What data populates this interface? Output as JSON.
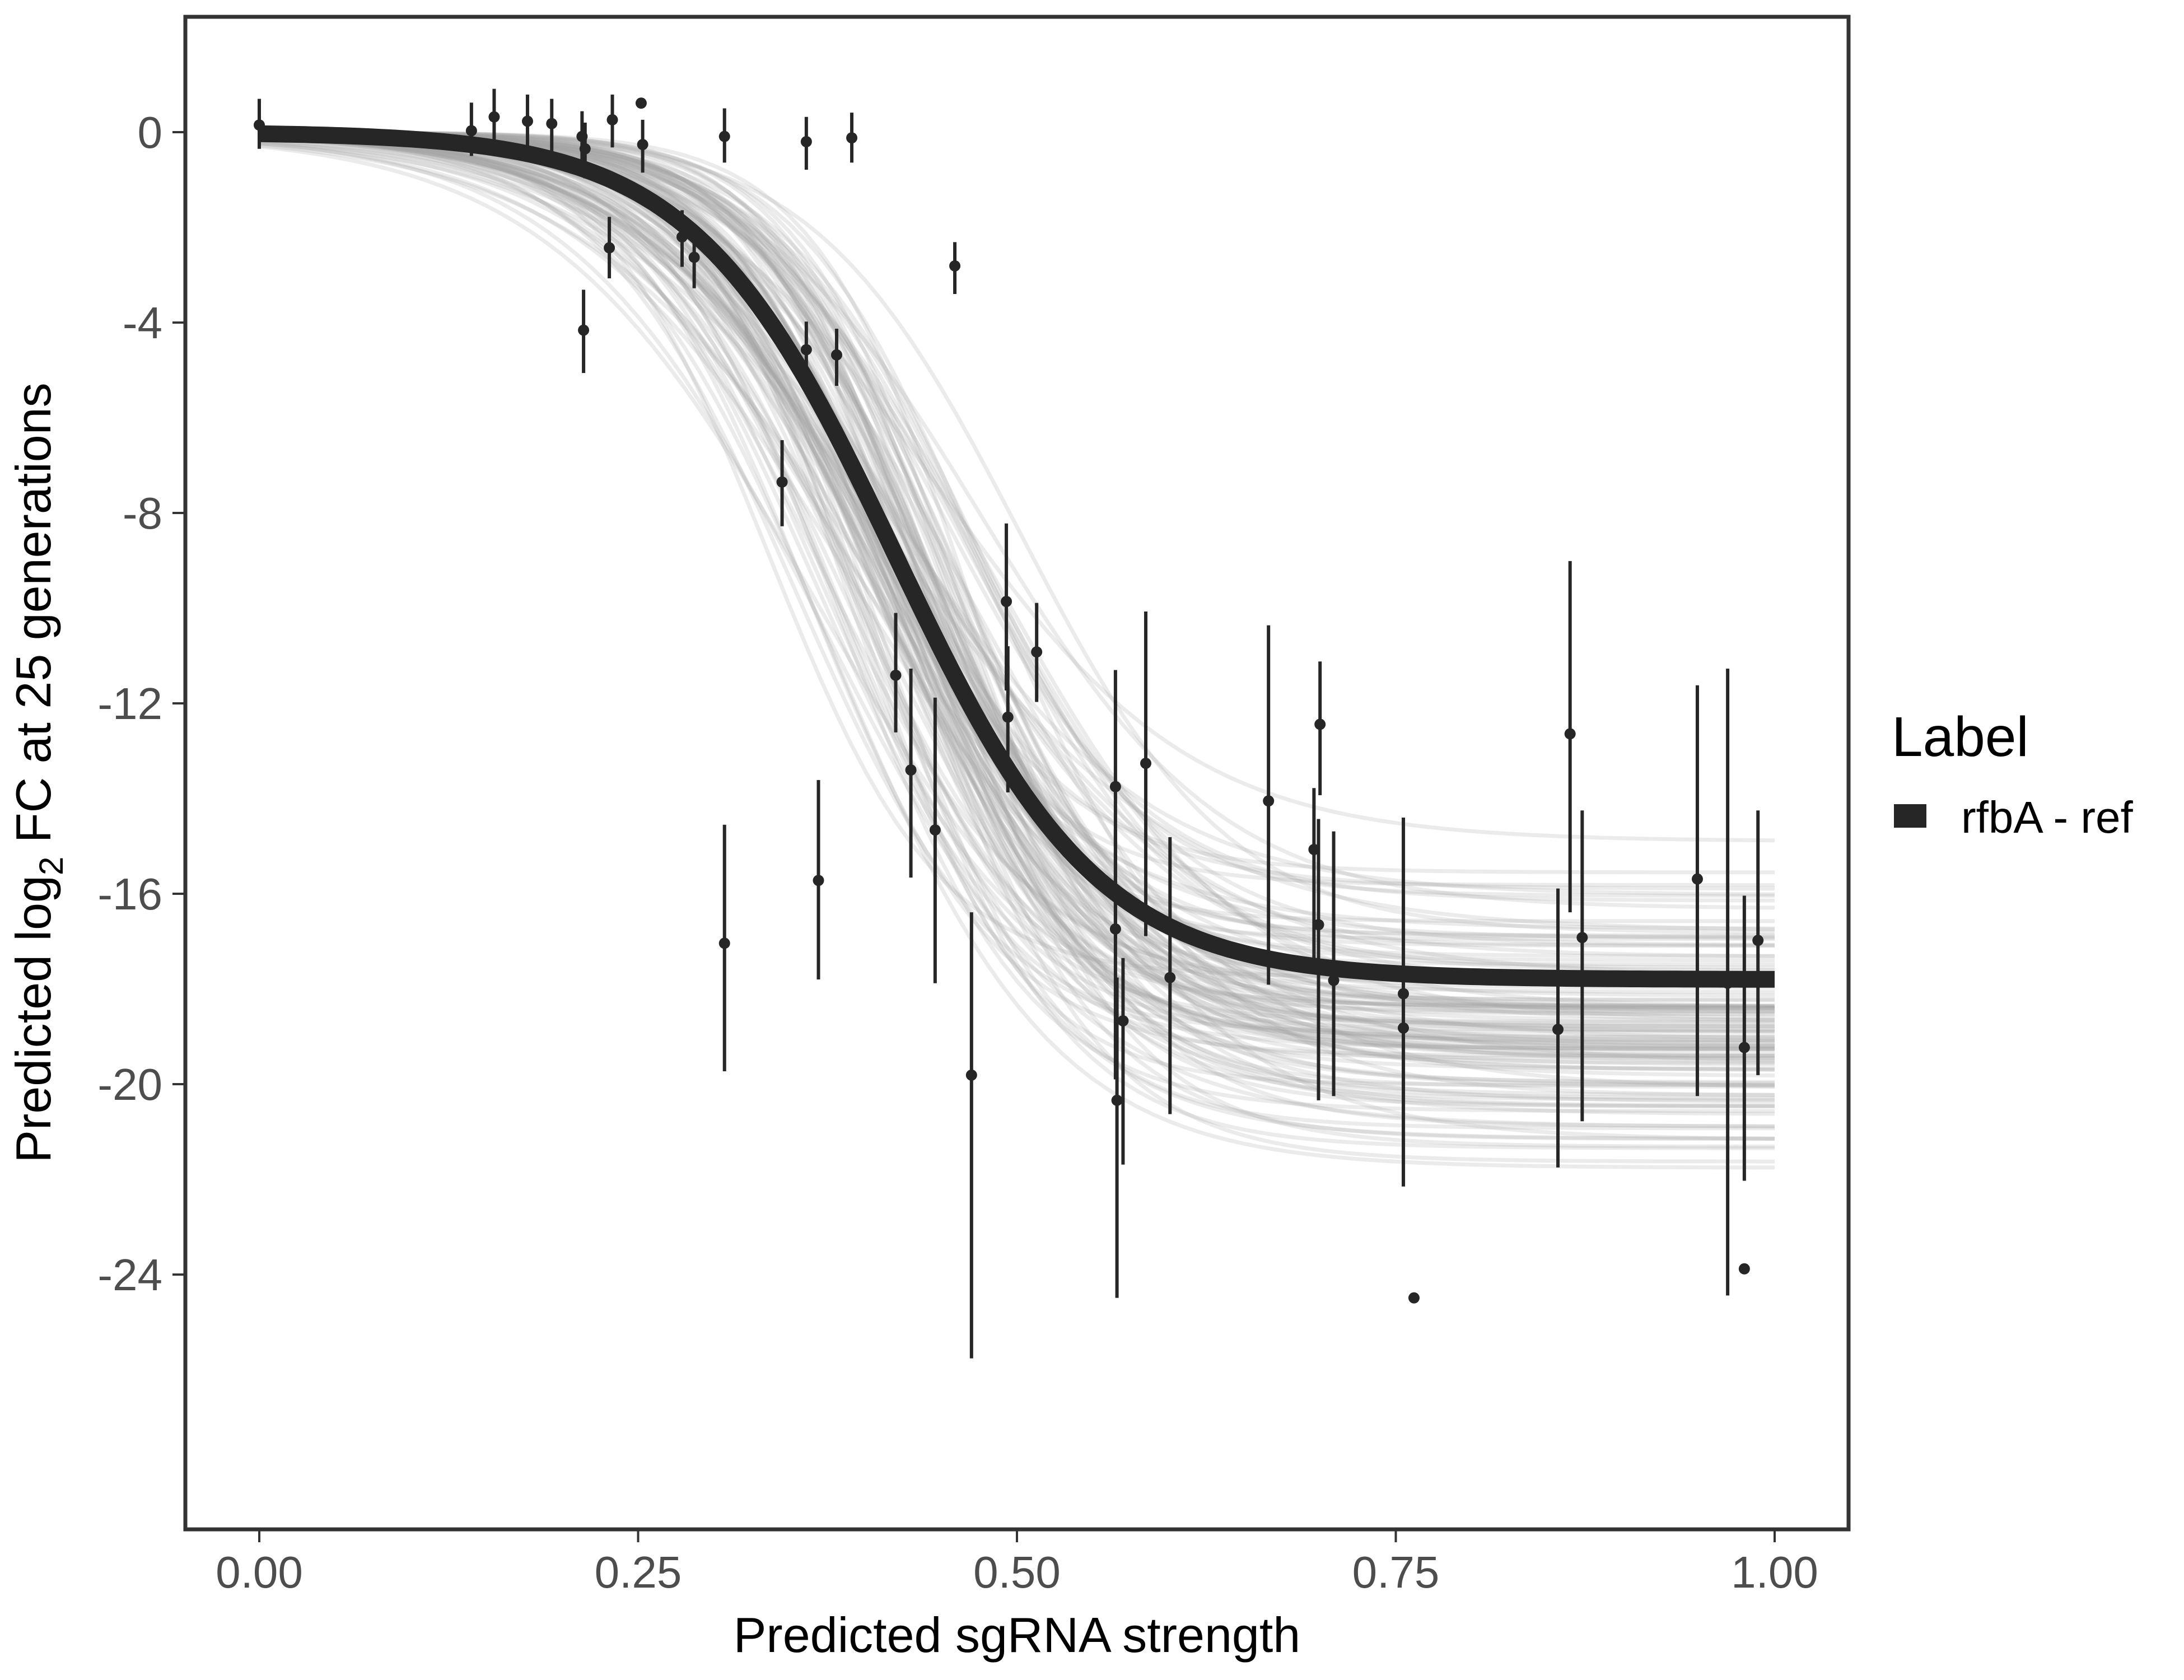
{
  "chart_data": {
    "type": "scatter",
    "title": "",
    "xlabel": "Predicted sgRNA strength",
    "ylabel_parts": [
      "Predicted  log",
      "2",
      " FC at 25 generations"
    ],
    "xlim": [
      -0.05,
      1.05
    ],
    "ylim": [
      -29.5,
      2.4
    ],
    "x_ticks": [
      0,
      0.25,
      0.5,
      0.75,
      1.0
    ],
    "x_tick_labels": [
      "0.00",
      "0.25",
      "0.50",
      "0.75",
      "1.00"
    ],
    "y_ticks": [
      0,
      -4,
      -8,
      -12,
      -16,
      -20,
      -24
    ],
    "y_tick_labels": [
      "0",
      "-4",
      "-8",
      "-12",
      "-16",
      "-20",
      "-24"
    ],
    "grid": false,
    "legend": {
      "title": "Label",
      "placement": "right",
      "entries": [
        {
          "label": "rfbA - ref",
          "color": "#262626"
        }
      ]
    },
    "colors": {
      "fit_line": "#262626",
      "posterior_draws": "#a6a6a6",
      "points": "#262626",
      "panel_border": "#333333"
    },
    "fit_curve": {
      "model": "logistic",
      "description": "Median posterior fit",
      "upper_asymptote": 0.0,
      "lower_asymptote": -17.8,
      "midpoint": 0.42,
      "slope": 15.0,
      "x_range": [
        0,
        1
      ]
    },
    "posterior_band": {
      "description": "Posterior draws of the fitted curve",
      "n_draws_shown": 120,
      "lower_asymptote_range": [
        -23.2,
        -14.5
      ],
      "midpoint_range": [
        0.33,
        0.52
      ],
      "slope_range": [
        9,
        22
      ]
    },
    "points": [
      {
        "x": 0.0,
        "y": 0.15,
        "lo": -0.35,
        "hi": 0.7
      },
      {
        "x": 0.14,
        "y": 0.03,
        "lo": -0.5,
        "hi": 0.62
      },
      {
        "x": 0.155,
        "y": 0.32,
        "lo": -0.27,
        "hi": 0.91
      },
      {
        "x": 0.177,
        "y": 0.23,
        "lo": -0.35,
        "hi": 0.79
      },
      {
        "x": 0.193,
        "y": 0.18,
        "lo": -0.41,
        "hi": 0.7
      },
      {
        "x": 0.213,
        "y": -0.09,
        "lo": -0.67,
        "hi": 0.44
      },
      {
        "x": 0.215,
        "y": -0.35,
        "lo": -0.97,
        "hi": 0.2
      },
      {
        "x": 0.214,
        "y": -4.16,
        "lo": -5.06,
        "hi": -3.31
      },
      {
        "x": 0.231,
        "y": -2.43,
        "lo": -3.07,
        "hi": -1.78
      },
      {
        "x": 0.233,
        "y": 0.26,
        "lo": -0.32,
        "hi": 0.79
      },
      {
        "x": 0.252,
        "y": 0.61,
        "lo": null,
        "hi": null
      },
      {
        "x": 0.253,
        "y": -0.26,
        "lo": -0.85,
        "hi": 0.26
      },
      {
        "x": 0.279,
        "y": -2.2,
        "lo": -2.83,
        "hi": -1.64
      },
      {
        "x": 0.287,
        "y": -2.63,
        "lo": -3.28,
        "hi": -2.14
      },
      {
        "x": 0.307,
        "y": -0.09,
        "lo": -0.64,
        "hi": 0.5
      },
      {
        "x": 0.307,
        "y": -17.04,
        "lo": -19.73,
        "hi": -14.55
      },
      {
        "x": 0.345,
        "y": -7.35,
        "lo": -8.28,
        "hi": -6.47
      },
      {
        "x": 0.361,
        "y": -0.2,
        "lo": -0.79,
        "hi": 0.32
      },
      {
        "x": 0.361,
        "y": -4.57,
        "lo": -5.5,
        "hi": -3.98
      },
      {
        "x": 0.369,
        "y": -15.72,
        "lo": -17.8,
        "hi": -13.61
      },
      {
        "x": 0.381,
        "y": -4.68,
        "lo": -5.33,
        "hi": -4.13
      },
      {
        "x": 0.391,
        "y": -0.12,
        "lo": -0.64,
        "hi": 0.41
      },
      {
        "x": 0.42,
        "y": -11.41,
        "lo": -12.61,
        "hi": -10.1
      },
      {
        "x": 0.43,
        "y": -13.4,
        "lo": -15.66,
        "hi": -11.27
      },
      {
        "x": 0.446,
        "y": -14.66,
        "lo": -17.88,
        "hi": -11.88
      },
      {
        "x": 0.459,
        "y": -2.81,
        "lo": -3.4,
        "hi": -2.31
      },
      {
        "x": 0.47,
        "y": -19.81,
        "lo": -25.76,
        "hi": -16.39
      },
      {
        "x": 0.493,
        "y": -9.86,
        "lo": -11.73,
        "hi": -8.22
      },
      {
        "x": 0.494,
        "y": -12.29,
        "lo": -13.87,
        "hi": -10.8
      },
      {
        "x": 0.513,
        "y": -10.92,
        "lo": -11.97,
        "hi": -9.89
      },
      {
        "x": 0.565,
        "y": -13.75,
        "lo": -16.94,
        "hi": -11.3
      },
      {
        "x": 0.565,
        "y": -16.74,
        "lo": -19.9,
        "hi": -14.66
      },
      {
        "x": 0.566,
        "y": -20.34,
        "lo": -24.49,
        "hi": -17.76
      },
      {
        "x": 0.57,
        "y": -18.67,
        "lo": -21.69,
        "hi": -17.35
      },
      {
        "x": 0.585,
        "y": -13.26,
        "lo": -16.89,
        "hi": -10.07
      },
      {
        "x": 0.601,
        "y": -17.76,
        "lo": -20.63,
        "hi": -14.81
      },
      {
        "x": 0.666,
        "y": -14.05,
        "lo": -17.91,
        "hi": -10.36
      },
      {
        "x": 0.696,
        "y": -15.07,
        "lo": -17.56,
        "hi": -13.78
      },
      {
        "x": 0.699,
        "y": -16.65,
        "lo": -20.34,
        "hi": -14.43
      },
      {
        "x": 0.7,
        "y": -12.44,
        "lo": -13.93,
        "hi": -11.12
      },
      {
        "x": 0.709,
        "y": -17.82,
        "lo": -20.25,
        "hi": -14.69
      },
      {
        "x": 0.755,
        "y": -18.1,
        "lo": -22.15,
        "hi": -14.4
      },
      {
        "x": 0.755,
        "y": -18.82,
        "lo": -22.12,
        "hi": -16.07
      },
      {
        "x": 0.762,
        "y": -24.49,
        "lo": null,
        "hi": null
      },
      {
        "x": 0.857,
        "y": -18.85,
        "lo": -21.75,
        "hi": -15.89
      },
      {
        "x": 0.865,
        "y": -12.64,
        "lo": -16.39,
        "hi": -9.01
      },
      {
        "x": 0.873,
        "y": -16.92,
        "lo": -20.78,
        "hi": -14.25
      },
      {
        "x": 0.949,
        "y": -15.69,
        "lo": -20.25,
        "hi": -11.62
      },
      {
        "x": 0.969,
        "y": -17.88,
        "lo": -24.44,
        "hi": -11.27
      },
      {
        "x": 0.98,
        "y": -19.23,
        "lo": -22.03,
        "hi": -16.04
      },
      {
        "x": 0.98,
        "y": -23.88,
        "lo": null,
        "hi": null
      },
      {
        "x": 0.989,
        "y": -16.98,
        "lo": -19.81,
        "hi": -14.25
      }
    ]
  }
}
